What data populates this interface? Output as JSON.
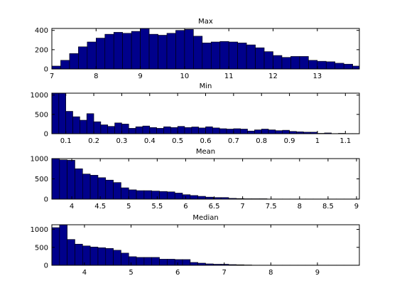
{
  "chart_data": [
    {
      "type": "bar",
      "title": "Max",
      "bar_color": "#00008B",
      "x_range": [
        7,
        13.95
      ],
      "y_range": [
        0,
        420
      ],
      "x_ticks": [
        7,
        8,
        9,
        10,
        11,
        12,
        13
      ],
      "y_ticks": [
        0,
        200,
        400
      ],
      "bin_start": 7,
      "bin_width": 0.2,
      "values": [
        30,
        90,
        160,
        230,
        280,
        320,
        360,
        380,
        370,
        390,
        420,
        360,
        350,
        370,
        400,
        410,
        340,
        270,
        280,
        285,
        280,
        270,
        250,
        220,
        180,
        140,
        120,
        130,
        130,
        90,
        80,
        75,
        60,
        50,
        30,
        40,
        40
      ]
    },
    {
      "type": "bar",
      "title": "Min",
      "bar_color": "#00008B",
      "x_range": [
        0.05,
        1.15
      ],
      "y_range": [
        0,
        1050
      ],
      "x_ticks": [
        0.1,
        0.2,
        0.3,
        0.4,
        0.5,
        0.6,
        0.7,
        0.8,
        0.9,
        1,
        1.1
      ],
      "y_ticks": [
        0,
        500,
        1000
      ],
      "bin_start": 0.05,
      "bin_width": 0.025,
      "values": [
        1050,
        1050,
        580,
        440,
        350,
        520,
        310,
        230,
        190,
        280,
        250,
        140,
        180,
        200,
        160,
        140,
        180,
        160,
        190,
        160,
        175,
        150,
        180,
        150,
        130,
        120,
        130,
        120,
        70,
        100,
        120,
        100,
        80,
        90,
        60,
        50,
        40,
        40,
        10,
        20,
        5,
        10,
        5,
        5
      ]
    },
    {
      "type": "bar",
      "title": "Mean",
      "bar_color": "#00008B",
      "x_range": [
        3.65,
        9.05
      ],
      "y_range": [
        0,
        1000
      ],
      "x_ticks": [
        4,
        4.5,
        5,
        5.5,
        6,
        6.5,
        7,
        7.5,
        8,
        8.5,
        9
      ],
      "y_ticks": [
        0,
        500,
        1000
      ],
      "bin_start": 3.65,
      "bin_width": 0.135,
      "values": [
        1000,
        970,
        960,
        750,
        620,
        590,
        530,
        470,
        410,
        280,
        230,
        210,
        210,
        200,
        190,
        180,
        150,
        110,
        90,
        70,
        50,
        40,
        40,
        20,
        15,
        10,
        10,
        10,
        5,
        5,
        5,
        5,
        5,
        5,
        5,
        5,
        5,
        5,
        5,
        5
      ]
    },
    {
      "type": "bar",
      "title": "Median",
      "bar_color": "#00008B",
      "x_range": [
        3.3,
        9.9
      ],
      "y_range": [
        0,
        1130
      ],
      "x_ticks": [
        4,
        5,
        6,
        7,
        8,
        9
      ],
      "y_ticks": [
        0,
        500,
        1000
      ],
      "bin_start": 3.3,
      "bin_width": 0.165,
      "values": [
        1050,
        1130,
        720,
        590,
        540,
        510,
        490,
        470,
        420,
        340,
        240,
        220,
        220,
        220,
        170,
        170,
        160,
        160,
        80,
        60,
        40,
        30,
        30,
        20,
        15,
        10,
        5,
        5,
        5,
        5,
        5,
        5,
        5,
        5,
        5,
        5,
        5,
        5,
        5,
        5
      ]
    }
  ]
}
